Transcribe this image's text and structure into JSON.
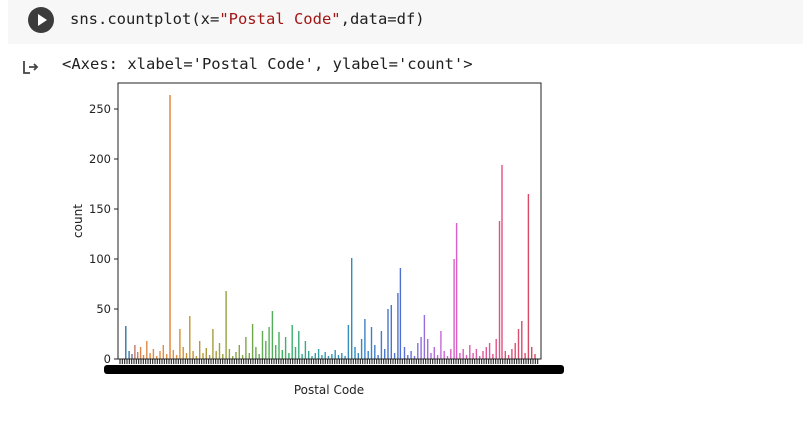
{
  "cell": {
    "code_prefix": "sns.countplot(x=",
    "code_string": "\"Postal Code\"",
    "code_suffix": ",data=df)",
    "output_text": "<Axes: xlabel='Postal Code', ylabel='count'>"
  },
  "icons": {
    "run": "play-icon",
    "output": "output-arrow-icon"
  },
  "chart_data": {
    "type": "bar",
    "xlabel": "Postal Code",
    "ylabel": "count",
    "ylim": [
      0,
      276
    ],
    "yticks": [
      0,
      50,
      100,
      150,
      200,
      250
    ],
    "x_tick_labels": "illegible (overlapping)",
    "grid": false,
    "bars": [
      {
        "pos": 0.005,
        "value": 33,
        "color": "#3274a1"
      },
      {
        "pos": 0.013,
        "value": 8,
        "color": "#3a77a8"
      },
      {
        "pos": 0.02,
        "value": 5,
        "color": "#7f6e9b"
      },
      {
        "pos": 0.027,
        "value": 14,
        "color": "#c07a6c"
      },
      {
        "pos": 0.034,
        "value": 7,
        "color": "#cf7f57"
      },
      {
        "pos": 0.041,
        "value": 12,
        "color": "#d98448"
      },
      {
        "pos": 0.048,
        "value": 4,
        "color": "#dd8646"
      },
      {
        "pos": 0.056,
        "value": 18,
        "color": "#de8845"
      },
      {
        "pos": 0.064,
        "value": 6,
        "color": "#df8a44"
      },
      {
        "pos": 0.072,
        "value": 10,
        "color": "#e08b44"
      },
      {
        "pos": 0.08,
        "value": 3,
        "color": "#e08c44"
      },
      {
        "pos": 0.088,
        "value": 8,
        "color": "#e18d43"
      },
      {
        "pos": 0.096,
        "value": 14,
        "color": "#e18e43"
      },
      {
        "pos": 0.104,
        "value": 5,
        "color": "#e28f42"
      },
      {
        "pos": 0.112,
        "value": 264,
        "color": "#e1812c"
      },
      {
        "pos": 0.12,
        "value": 9,
        "color": "#e29042"
      },
      {
        "pos": 0.128,
        "value": 4,
        "color": "#e29142"
      },
      {
        "pos": 0.136,
        "value": 30,
        "color": "#d7912e"
      },
      {
        "pos": 0.144,
        "value": 12,
        "color": "#cf9331"
      },
      {
        "pos": 0.152,
        "value": 6,
        "color": "#c99434"
      },
      {
        "pos": 0.16,
        "value": 43,
        "color": "#c39636"
      },
      {
        "pos": 0.168,
        "value": 8,
        "color": "#bf9737"
      },
      {
        "pos": 0.176,
        "value": 3,
        "color": "#bb9839"
      },
      {
        "pos": 0.184,
        "value": 18,
        "color": "#b7993a"
      },
      {
        "pos": 0.192,
        "value": 6,
        "color": "#b39a3b"
      },
      {
        "pos": 0.2,
        "value": 11,
        "color": "#af9b3c"
      },
      {
        "pos": 0.208,
        "value": 4,
        "color": "#ab9c3d"
      },
      {
        "pos": 0.216,
        "value": 30,
        "color": "#a79d3e"
      },
      {
        "pos": 0.224,
        "value": 8,
        "color": "#a39e3f"
      },
      {
        "pos": 0.232,
        "value": 16,
        "color": "#9f9f40"
      },
      {
        "pos": 0.24,
        "value": 5,
        "color": "#9ba041"
      },
      {
        "pos": 0.248,
        "value": 68,
        "color": "#97a142"
      },
      {
        "pos": 0.256,
        "value": 10,
        "color": "#93a243"
      },
      {
        "pos": 0.264,
        "value": 3,
        "color": "#8fa344"
      },
      {
        "pos": 0.272,
        "value": 7,
        "color": "#8ba445"
      },
      {
        "pos": 0.28,
        "value": 14,
        "color": "#87a546"
      },
      {
        "pos": 0.288,
        "value": 4,
        "color": "#83a647"
      },
      {
        "pos": 0.296,
        "value": 22,
        "color": "#7fa748"
      },
      {
        "pos": 0.304,
        "value": 6,
        "color": "#7ba849"
      },
      {
        "pos": 0.312,
        "value": 35,
        "color": "#6fa84c"
      },
      {
        "pos": 0.32,
        "value": 12,
        "color": "#6aa94e"
      },
      {
        "pos": 0.328,
        "value": 5,
        "color": "#65aa50"
      },
      {
        "pos": 0.336,
        "value": 28,
        "color": "#60ab52"
      },
      {
        "pos": 0.344,
        "value": 18,
        "color": "#5bac54"
      },
      {
        "pos": 0.352,
        "value": 32,
        "color": "#56ad56"
      },
      {
        "pos": 0.36,
        "value": 48,
        "color": "#51ae58"
      },
      {
        "pos": 0.368,
        "value": 14,
        "color": "#4caf5a"
      },
      {
        "pos": 0.376,
        "value": 27,
        "color": "#47b05c"
      },
      {
        "pos": 0.384,
        "value": 9,
        "color": "#42b15e"
      },
      {
        "pos": 0.392,
        "value": 22,
        "color": "#3db260"
      },
      {
        "pos": 0.4,
        "value": 6,
        "color": "#3ab266"
      },
      {
        "pos": 0.408,
        "value": 34,
        "color": "#39b06d"
      },
      {
        "pos": 0.416,
        "value": 12,
        "color": "#38ae74"
      },
      {
        "pos": 0.424,
        "value": 28,
        "color": "#37ac7b"
      },
      {
        "pos": 0.432,
        "value": 5,
        "color": "#36aa82"
      },
      {
        "pos": 0.44,
        "value": 18,
        "color": "#35a889"
      },
      {
        "pos": 0.448,
        "value": 8,
        "color": "#34a690"
      },
      {
        "pos": 0.456,
        "value": 3,
        "color": "#33a497"
      },
      {
        "pos": 0.464,
        "value": 6,
        "color": "#32a29e"
      },
      {
        "pos": 0.472,
        "value": 10,
        "color": "#31a0a5"
      },
      {
        "pos": 0.48,
        "value": 4,
        "color": "#309eac"
      },
      {
        "pos": 0.488,
        "value": 7,
        "color": "#2f9cb0"
      },
      {
        "pos": 0.496,
        "value": 3,
        "color": "#2f9ab3"
      },
      {
        "pos": 0.504,
        "value": 5,
        "color": "#2f98b6"
      },
      {
        "pos": 0.512,
        "value": 9,
        "color": "#2f96b8"
      },
      {
        "pos": 0.52,
        "value": 4,
        "color": "#2f94ba"
      },
      {
        "pos": 0.528,
        "value": 6,
        "color": "#2f92bc"
      },
      {
        "pos": 0.536,
        "value": 3,
        "color": "#3090be"
      },
      {
        "pos": 0.544,
        "value": 34,
        "color": "#318ec0"
      },
      {
        "pos": 0.552,
        "value": 101,
        "color": "#328cc1"
      },
      {
        "pos": 0.56,
        "value": 12,
        "color": "#348ac2"
      },
      {
        "pos": 0.568,
        "value": 6,
        "color": "#3688c3"
      },
      {
        "pos": 0.576,
        "value": 20,
        "color": "#3886c4"
      },
      {
        "pos": 0.584,
        "value": 40,
        "color": "#3a84c5"
      },
      {
        "pos": 0.592,
        "value": 8,
        "color": "#3c82c6"
      },
      {
        "pos": 0.6,
        "value": 32,
        "color": "#3e80c7"
      },
      {
        "pos": 0.608,
        "value": 14,
        "color": "#407ec8"
      },
      {
        "pos": 0.616,
        "value": 4,
        "color": "#427cc9"
      },
      {
        "pos": 0.624,
        "value": 28,
        "color": "#447aca"
      },
      {
        "pos": 0.632,
        "value": 10,
        "color": "#4678cb"
      },
      {
        "pos": 0.64,
        "value": 50,
        "color": "#4876cc"
      },
      {
        "pos": 0.648,
        "value": 54,
        "color": "#4a74cd"
      },
      {
        "pos": 0.656,
        "value": 6,
        "color": "#4c72ce"
      },
      {
        "pos": 0.664,
        "value": 66,
        "color": "#4e70cf"
      },
      {
        "pos": 0.67,
        "value": 91,
        "color": "#5070d0"
      },
      {
        "pos": 0.68,
        "value": 12,
        "color": "#5a70d2"
      },
      {
        "pos": 0.688,
        "value": 4,
        "color": "#6470d4"
      },
      {
        "pos": 0.696,
        "value": 8,
        "color": "#6e70d6"
      },
      {
        "pos": 0.704,
        "value": 3,
        "color": "#7870d8"
      },
      {
        "pos": 0.712,
        "value": 16,
        "color": "#8270da"
      },
      {
        "pos": 0.72,
        "value": 22,
        "color": "#8c6fdb"
      },
      {
        "pos": 0.728,
        "value": 44,
        "color": "#966edc"
      },
      {
        "pos": 0.736,
        "value": 20,
        "color": "#a06ddc"
      },
      {
        "pos": 0.744,
        "value": 6,
        "color": "#aa6cdc"
      },
      {
        "pos": 0.752,
        "value": 12,
        "color": "#b46bdc"
      },
      {
        "pos": 0.76,
        "value": 4,
        "color": "#be6adb"
      },
      {
        "pos": 0.768,
        "value": 28,
        "color": "#c668d9"
      },
      {
        "pos": 0.776,
        "value": 8,
        "color": "#cc66d6"
      },
      {
        "pos": 0.784,
        "value": 3,
        "color": "#d264d2"
      },
      {
        "pos": 0.792,
        "value": 10,
        "color": "#d662cd"
      },
      {
        "pos": 0.8,
        "value": 100,
        "color": "#d860c8"
      },
      {
        "pos": 0.806,
        "value": 136,
        "color": "#da5fc4"
      },
      {
        "pos": 0.814,
        "value": 6,
        "color": "#db5ebf"
      },
      {
        "pos": 0.822,
        "value": 10,
        "color": "#dc5dba"
      },
      {
        "pos": 0.83,
        "value": 4,
        "color": "#dd5cb5"
      },
      {
        "pos": 0.838,
        "value": 14,
        "color": "#de5bb0"
      },
      {
        "pos": 0.846,
        "value": 6,
        "color": "#df5aab"
      },
      {
        "pos": 0.854,
        "value": 10,
        "color": "#e059a6"
      },
      {
        "pos": 0.862,
        "value": 3,
        "color": "#e158a1"
      },
      {
        "pos": 0.87,
        "value": 8,
        "color": "#e1579c"
      },
      {
        "pos": 0.878,
        "value": 12,
        "color": "#e15697"
      },
      {
        "pos": 0.886,
        "value": 16,
        "color": "#e15592"
      },
      {
        "pos": 0.894,
        "value": 5,
        "color": "#e1548d"
      },
      {
        "pos": 0.902,
        "value": 20,
        "color": "#e15388"
      },
      {
        "pos": 0.91,
        "value": 138,
        "color": "#e15283"
      },
      {
        "pos": 0.916,
        "value": 194,
        "color": "#e1517e"
      },
      {
        "pos": 0.924,
        "value": 8,
        "color": "#e0507a"
      },
      {
        "pos": 0.932,
        "value": 4,
        "color": "#df4f77"
      },
      {
        "pos": 0.94,
        "value": 10,
        "color": "#de4e74"
      },
      {
        "pos": 0.948,
        "value": 16,
        "color": "#dd4d71"
      },
      {
        "pos": 0.956,
        "value": 30,
        "color": "#dc4c6e"
      },
      {
        "pos": 0.964,
        "value": 38,
        "color": "#db4b6b"
      },
      {
        "pos": 0.972,
        "value": 6,
        "color": "#da4a68"
      },
      {
        "pos": 0.98,
        "value": 165,
        "color": "#d94965"
      },
      {
        "pos": 0.988,
        "value": 12,
        "color": "#d84862"
      },
      {
        "pos": 0.996,
        "value": 5,
        "color": "#d7475f"
      }
    ]
  }
}
